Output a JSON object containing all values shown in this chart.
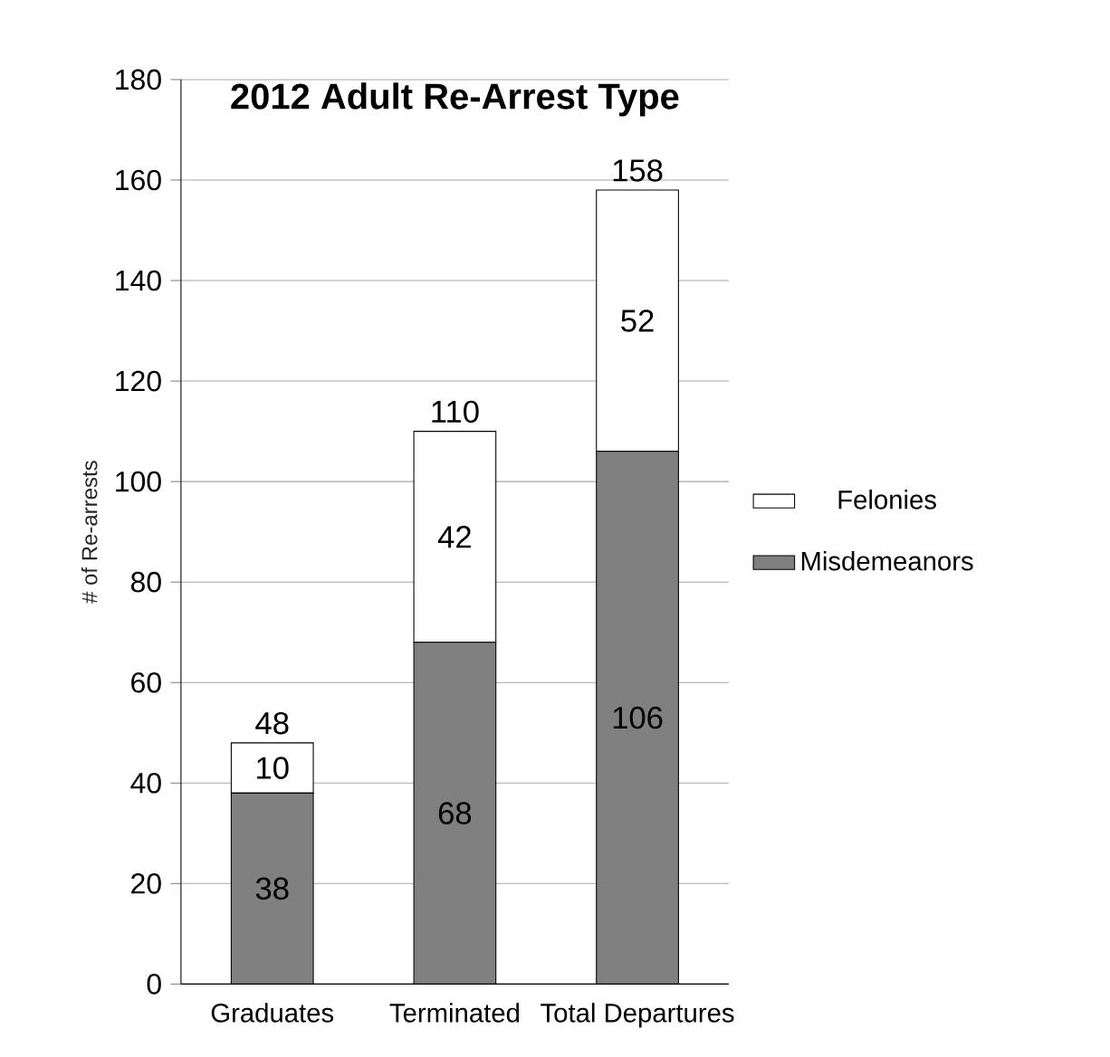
{
  "chart_data": {
    "type": "bar",
    "stacked": true,
    "title": "2012 Adult Re-Arrest Type",
    "ylabel": "# of Re-arrests",
    "categories": [
      "Graduates",
      "Terminated",
      "Total Departures"
    ],
    "series": [
      {
        "name": "Misdemeanors",
        "color": "#808080",
        "values": [
          38,
          68,
          106
        ]
      },
      {
        "name": "Felonies",
        "color": "#ffffff",
        "values": [
          10,
          42,
          52
        ]
      }
    ],
    "totals": [
      "48",
      "110",
      "158"
    ],
    "ylim": [
      0,
      180
    ],
    "yticks": [
      0,
      20,
      40,
      60,
      80,
      100,
      120,
      140,
      160,
      180
    ],
    "grid": "y",
    "legend": "right",
    "data_labels": true
  }
}
